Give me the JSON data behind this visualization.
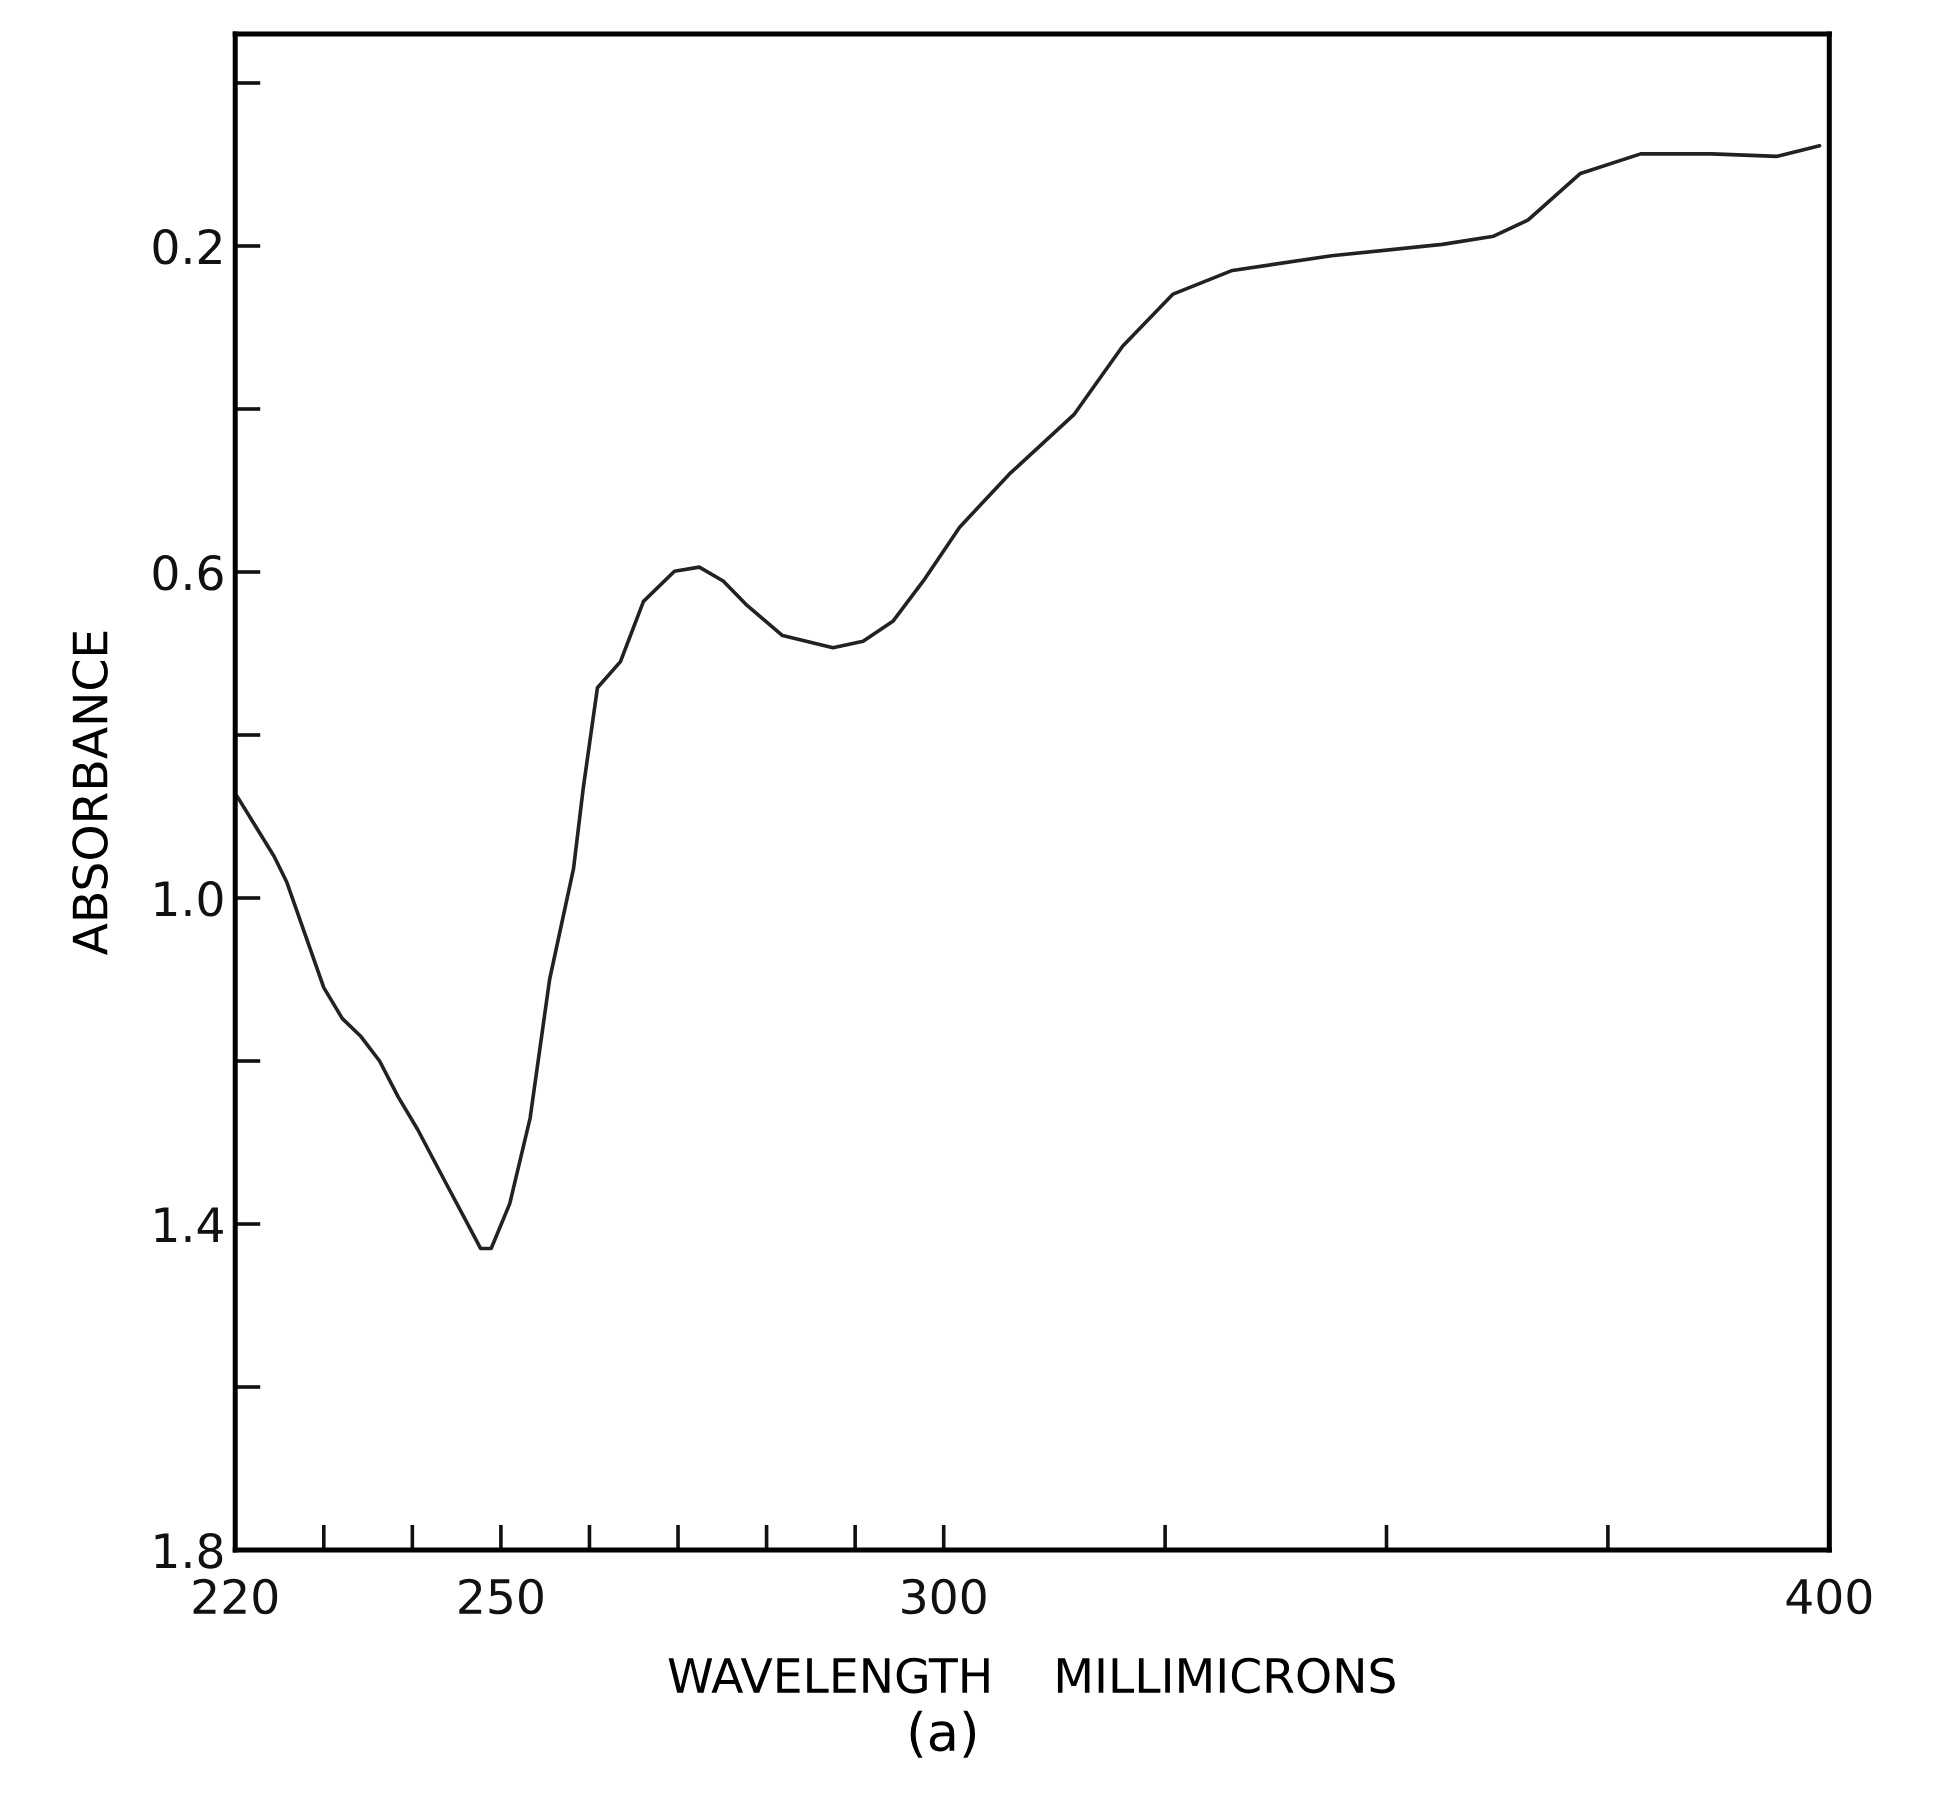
{
  "chart_data": {
    "type": "line",
    "xlabel": "WAVELENGTH    MILLIMICRONS",
    "ylabel": "ABSORBANCE",
    "annotations": [
      "(a)"
    ],
    "x": [
      220.2,
      224.4,
      225.8,
      230,
      232.1,
      234.2,
      236.3,
      238.4,
      240.6,
      243.8,
      246.0,
      247.7,
      248.9,
      251.0,
      253.3,
      255.5,
      258.2,
      259.3,
      260.9,
      263.5,
      266.1,
      269.6,
      272.4,
      275.1,
      277.8,
      281.8,
      287.5,
      290.9,
      294.3,
      297.7,
      301.8,
      307.4,
      314.7,
      320.2,
      325.9,
      332.6,
      343.8,
      356.3,
      362.1,
      366.0,
      371.9,
      378.7,
      386.7,
      394.1,
      398.9
    ],
    "series": [
      {
        "color": "#222222",
        "values": [
          0.875,
          0.949,
          0.98,
          1.11,
          1.148,
          1.17,
          1.2,
          1.244,
          1.284,
          1.35,
          1.395,
          1.43,
          1.43,
          1.375,
          1.27,
          1.1,
          0.964,
          0.865,
          0.742,
          0.71,
          0.636,
          0.599,
          0.594,
          0.611,
          0.641,
          0.678,
          0.693,
          0.685,
          0.66,
          0.611,
          0.545,
          0.48,
          0.407,
          0.323,
          0.259,
          0.23,
          0.212,
          0.198,
          0.188,
          0.168,
          0.111,
          0.087,
          0.087,
          0.09,
          0.077
        ]
      }
    ],
    "xlim": [
      220,
      400
    ],
    "xticks": [
      220,
      {
        "value": 230,
        "label": null
      },
      {
        "value": 240,
        "label": null
      },
      250,
      {
        "value": 260,
        "label": null
      },
      {
        "value": 270,
        "label": null
      },
      {
        "value": 280,
        "label": null
      },
      {
        "value": 290,
        "label": null
      },
      300,
      {
        "value": 325,
        "label": null
      },
      {
        "value": 350,
        "label": null
      },
      {
        "value": 375,
        "label": null
      },
      400
    ],
    "ylim": [
      1.8,
      -0.06
    ],
    "yticks": [
      {
        "value": 0,
        "label": null
      },
      0.2,
      {
        "value": 0.4,
        "label": null
      },
      0.6,
      {
        "value": 0.8,
        "label": null
      },
      {
        "value": 1.0,
        "label": "1.0"
      },
      {
        "value": 1.2,
        "label": null
      },
      1.4,
      {
        "value": 1.6,
        "label": null
      },
      1.8
    ],
    "grid": false,
    "marker": "none",
    "line_style": "solid"
  }
}
